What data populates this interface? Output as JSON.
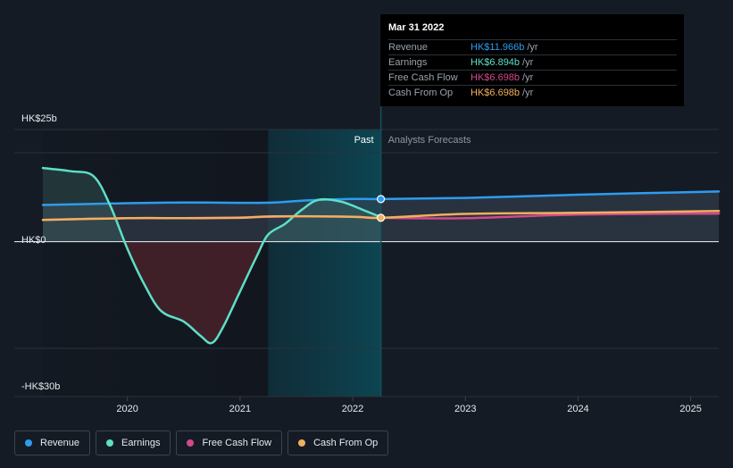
{
  "chart_data": {
    "type": "line",
    "x_labels": [
      "2020",
      "2021",
      "2022",
      "2023",
      "2024",
      "2025"
    ],
    "y_ticks": [
      {
        "label": "HK$25b",
        "value": 25
      },
      {
        "label": "HK$0",
        "value": 0
      },
      {
        "label": "-HK$30b",
        "value": -30
      }
    ],
    "ylim": [
      -30,
      25
    ],
    "xlim": [
      2019.25,
      2025.25
    ],
    "unit": "HK$ billions",
    "past_label": "Past",
    "forecast_label": "Analysts Forecasts",
    "past_region": [
      2021.25,
      2022.25
    ],
    "divider_x": 2022.25,
    "series": [
      {
        "name": "Revenue",
        "color": "#2d9cf0",
        "fill": true,
        "points": [
          [
            2019.25,
            10.3
          ],
          [
            2020.0,
            10.8
          ],
          [
            2020.5,
            11.0
          ],
          [
            2021.0,
            10.9
          ],
          [
            2021.3,
            11.0
          ],
          [
            2021.6,
            11.6
          ],
          [
            2022.0,
            12.0
          ],
          [
            2022.25,
            11.966
          ],
          [
            2023.0,
            12.3
          ],
          [
            2024.0,
            13.2
          ],
          [
            2025.25,
            14.1
          ]
        ]
      },
      {
        "name": "Earnings",
        "color": "#5ce0c6",
        "fill": true,
        "points": [
          [
            2019.25,
            20.7
          ],
          [
            2019.5,
            19.8
          ],
          [
            2019.7,
            18.4
          ],
          [
            2019.85,
            10.0
          ],
          [
            2020.0,
            -2.0
          ],
          [
            2020.15,
            -12.0
          ],
          [
            2020.3,
            -19.5
          ],
          [
            2020.5,
            -22.5
          ],
          [
            2020.65,
            -26.5
          ],
          [
            2020.75,
            -28.5
          ],
          [
            2020.85,
            -24.0
          ],
          [
            2021.0,
            -14.0
          ],
          [
            2021.15,
            -4.0
          ],
          [
            2021.25,
            2.0
          ],
          [
            2021.4,
            5.0
          ],
          [
            2021.55,
            9.0
          ],
          [
            2021.7,
            11.8
          ],
          [
            2021.9,
            11.2
          ],
          [
            2022.1,
            8.8
          ],
          [
            2022.25,
            6.894
          ]
        ]
      },
      {
        "name": "Free Cash Flow",
        "color": "#d1498e",
        "fill": false,
        "points": [
          [
            2019.25,
            6.1
          ],
          [
            2020.0,
            6.6
          ],
          [
            2020.5,
            6.6
          ],
          [
            2021.0,
            6.8
          ],
          [
            2021.5,
            7.1
          ],
          [
            2022.0,
            7.0
          ],
          [
            2022.25,
            6.698
          ],
          [
            2023.0,
            6.6
          ],
          [
            2024.0,
            7.6
          ],
          [
            2025.25,
            7.9
          ]
        ]
      },
      {
        "name": "Cash From Op",
        "color": "#f0b05e",
        "fill": false,
        "points": [
          [
            2019.25,
            6.1
          ],
          [
            2020.0,
            6.6
          ],
          [
            2020.5,
            6.6
          ],
          [
            2021.0,
            6.7
          ],
          [
            2021.3,
            7.1
          ],
          [
            2022.0,
            7.0
          ],
          [
            2022.25,
            6.698
          ],
          [
            2023.0,
            7.8
          ],
          [
            2024.0,
            8.1
          ],
          [
            2025.25,
            8.6
          ]
        ]
      }
    ]
  },
  "tooltip": {
    "date": "Mar 31 2022",
    "rows": [
      {
        "label": "Revenue",
        "value": "HK$11.966b",
        "unit": "/yr",
        "color": "#2d9cf0"
      },
      {
        "label": "Earnings",
        "value": "HK$6.894b",
        "unit": "/yr",
        "color": "#5ce0c6"
      },
      {
        "label": "Free Cash Flow",
        "value": "HK$6.698b",
        "unit": "/yr",
        "color": "#d1498e"
      },
      {
        "label": "Cash From Op",
        "value": "HK$6.698b",
        "unit": "/yr",
        "color": "#f0b05e"
      }
    ]
  },
  "legend": [
    {
      "label": "Revenue",
      "color": "#2d9cf0"
    },
    {
      "label": "Earnings",
      "color": "#5ce0c6"
    },
    {
      "label": "Free Cash Flow",
      "color": "#d1498e"
    },
    {
      "label": "Cash From Op",
      "color": "#f0b05e"
    }
  ]
}
